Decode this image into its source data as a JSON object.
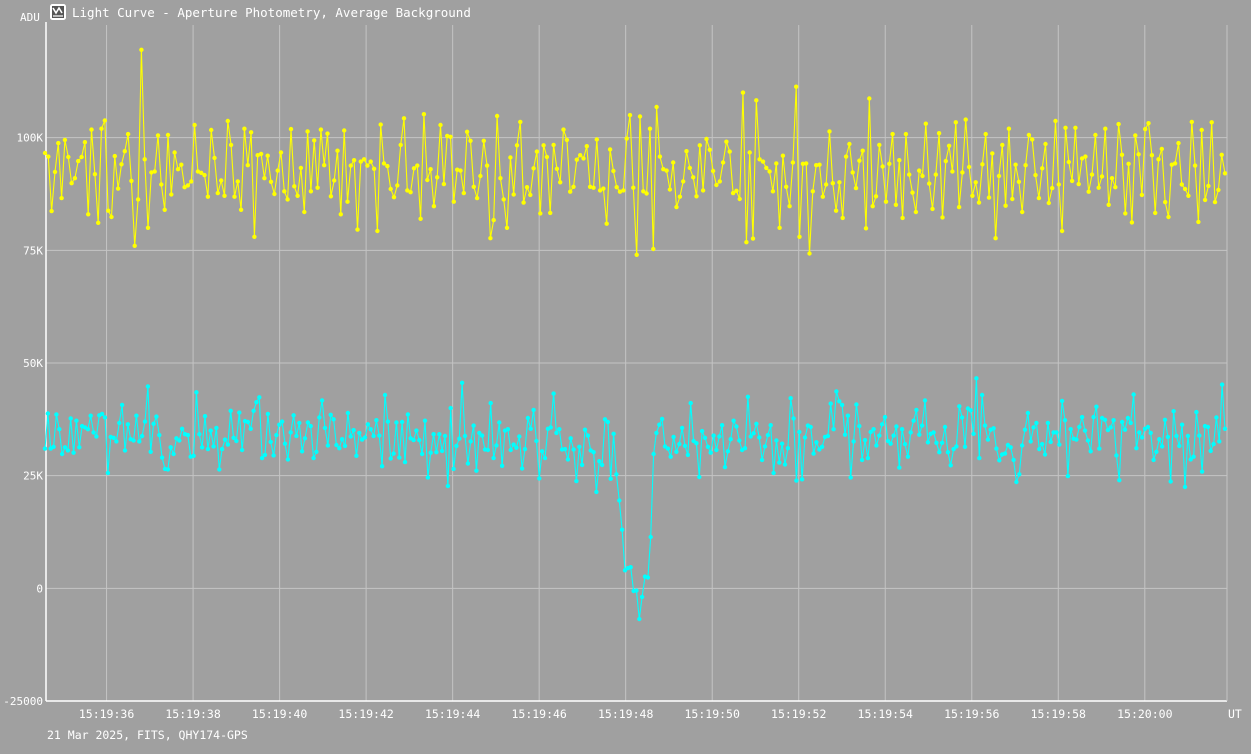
{
  "window": {
    "title": "Light Curve - Aperture Photometry, Average Background",
    "icon": "light-curve-app-icon"
  },
  "footer": {
    "text": "21 Mar 2025, FITS, QHY174-GPS"
  },
  "colors": {
    "background": "#a0a0a0",
    "grid": "#c4c4c4",
    "axis": "#ffffff",
    "series_yellow": "#ffff00",
    "series_cyan": "#00ffff"
  },
  "chart_data": {
    "type": "line",
    "title": "Light Curve - Aperture Photometry, Average Background",
    "ylabel": "ADU",
    "xlabel": "UT",
    "ylim": [
      -25000,
      125000
    ],
    "y_ticks": [
      {
        "value": 100000,
        "label": "100K"
      },
      {
        "value": 75000,
        "label": "75K"
      },
      {
        "value": 50000,
        "label": "50K"
      },
      {
        "value": 25000,
        "label": "25K"
      },
      {
        "value": 0,
        "label": "0"
      },
      {
        "value": -25000,
        "label": "-25000"
      }
    ],
    "x_range_seconds": [
      "15:19:34.6",
      "15:20:01.9"
    ],
    "x_ticks": [
      "15:19:36",
      "15:19:38",
      "15:19:40",
      "15:19:42",
      "15:19:44",
      "15:19:46",
      "15:19:48",
      "15:19:50",
      "15:19:52",
      "15:19:54",
      "15:19:56",
      "15:19:58",
      "15:20:00"
    ],
    "grid": true,
    "markers": true,
    "series": [
      {
        "color": "#ffff00",
        "values": [
          96600,
          95800,
          83700,
          92400,
          98800,
          86600,
          99500,
          95700,
          89900,
          91000,
          94800,
          95700,
          99000,
          83000,
          101800,
          91900,
          81100,
          102000,
          103800,
          83800,
          82400,
          95900,
          88700,
          94100,
          97000,
          100800,
          90400,
          76000,
          86300,
          119500,
          95200,
          80000,
          92300,
          92500,
          100500,
          89600,
          84000,
          100600,
          87400,
          96700,
          93000,
          94000,
          89000,
          89400,
          90300,
          102800,
          92500,
          92200,
          91700,
          86900,
          101700,
          95500,
          87700,
          90500,
          87100,
          103700,
          98400,
          86900,
          90300,
          84000,
          102000,
          93900,
          101200,
          78000,
          96100,
          96400,
          91000,
          96000,
          90200,
          87500,
          92700,
          96700,
          88100,
          86300,
          101900,
          89200,
          87100,
          93300,
          83500,
          101400,
          88100,
          99400,
          88900,
          101800,
          93900,
          100900,
          87000,
          90500,
          97100,
          83000,
          101600,
          85800,
          93800,
          95000,
          79600,
          94700,
          95200,
          93800,
          94700,
          93100,
          79300,
          102900,
          94300,
          93700,
          88600,
          86800,
          89400,
          98400,
          104300,
          88300,
          87900,
          93200,
          93800,
          82000,
          105200,
          90600,
          93000,
          84800,
          91200,
          102800,
          89700,
          100400,
          100200,
          85800,
          92900,
          92700,
          87700,
          101300,
          99300,
          89100,
          86600,
          91500,
          99300,
          93800,
          77700,
          81700,
          104800,
          91000,
          86300,
          80000,
          95600,
          87400,
          98300,
          103500,
          85600,
          89000,
          87300,
          93200,
          96900,
          83200,
          98300,
          95700,
          83300,
          98400,
          93100,
          90100,
          101800,
          99500,
          88000,
          89100,
          95100,
          96100,
          95400,
          98100,
          89100,
          88900,
          99600,
          88300,
          88700,
          80900,
          97400,
          92600,
          89000,
          88000,
          88300,
          99800,
          105000,
          88900,
          74000,
          104700,
          88100,
          87600,
          102000,
          75300,
          106800,
          95800,
          93000,
          92700,
          88500,
          94500,
          84600,
          86900,
          90300,
          97000,
          93300,
          91200,
          87000,
          98300,
          88300,
          99700,
          97300,
          92600,
          89500,
          90300,
          94500,
          99100,
          96900,
          87700,
          88200,
          86400,
          110000,
          76800,
          96700,
          77600,
          108300,
          95200,
          94700,
          93300,
          92500,
          88100,
          94300,
          80000,
          96000,
          89100,
          84800,
          94500,
          111300,
          78000,
          94200,
          94300,
          74300,
          88100,
          93900,
          94000,
          86900,
          89600,
          101400,
          89900,
          83800,
          90100,
          82200,
          95800,
          98600,
          92300,
          88800,
          94900,
          97100,
          79900,
          108700,
          84800,
          87000,
          98400,
          93600,
          85800,
          94200,
          100800,
          85100,
          95000,
          82200,
          100800,
          91800,
          87800,
          83500,
          92700,
          91500,
          103100,
          89800,
          84200,
          91800,
          101000,
          82300,
          94800,
          98200,
          92500,
          103400,
          84600,
          92300,
          104000,
          93500,
          87100,
          90100,
          85600,
          94100,
          100800,
          86700,
          96500,
          77700,
          91500,
          98400,
          84900,
          102000,
          86400,
          94000,
          90200,
          83500,
          93900,
          100600,
          99600,
          91700,
          86600,
          93200,
          98600,
          85500,
          88800,
          103700,
          89600,
          79300,
          102200,
          94600,
          90400,
          102200,
          89700,
          95400,
          95800,
          88000,
          91800,
          100600,
          88900,
          91400,
          102000,
          85100,
          91000,
          89000,
          103000,
          96200,
          83200,
          94200,
          81200,
          100500,
          96300,
          87300,
          101900,
          103200,
          96100,
          83300,
          95200,
          97500,
          85700,
          82400,
          94000,
          94300,
          98800,
          89600,
          88600,
          87100,
          103500,
          93800,
          81300,
          101700,
          86200,
          89300,
          103400,
          85700,
          88400,
          96200,
          92100
        ],
        "note_ignore": ""
      },
      {
        "color": "#00ffff",
        "values": [
          31000,
          38800,
          31000,
          31400,
          38600,
          35300,
          29800,
          31300,
          30600,
          37700,
          30100,
          37200,
          31300,
          36000,
          35700,
          35300,
          38300,
          34600,
          33700,
          38400,
          38700,
          37900,
          25600,
          33600,
          33400,
          32600,
          36700,
          40700,
          30600,
          36400,
          33100,
          32800,
          38300,
          32600,
          33800,
          37000,
          44800,
          30300,
          36500,
          38100,
          34000,
          29000,
          26500,
          26400,
          31300,
          29800,
          33300,
          32800,
          35400,
          34200,
          34000,
          29200,
          29400,
          43500,
          34200,
          31300,
          38200,
          30900,
          35000,
          31500,
          35600,
          26400,
          30900,
          33000,
          31900,
          39400,
          33400,
          32700,
          39000,
          30700,
          37100,
          36900,
          35400,
          39400,
          41300,
          42400,
          28900,
          29600,
          38700,
          32500,
          29500,
          34000,
          36300,
          37000,
          32100,
          28600,
          34600,
          38400,
          33800,
          36700,
          30400,
          33300,
          36800,
          36000,
          28900,
          30300,
          37900,
          41700,
          35600,
          31700,
          38500,
          37500,
          31800,
          31100,
          33100,
          31600,
          38900,
          33700,
          35100,
          29400,
          34500,
          33000,
          33500,
          36400,
          35300,
          33800,
          37300,
          33900,
          27100,
          42900,
          37000,
          28800,
          29900,
          36800,
          29000,
          36900,
          28000,
          38600,
          33300,
          32900,
          35000,
          32900,
          29800,
          37200,
          24600,
          30100,
          34200,
          30200,
          34200,
          30500,
          33800,
          22700,
          40000,
          26500,
          31600,
          33200,
          45600,
          33800,
          27700,
          32600,
          36100,
          26100,
          34500,
          33900,
          30800,
          30700,
          41100,
          28900,
          31700,
          36800,
          27200,
          35000,
          35300,
          30700,
          31900,
          31200,
          33700,
          26600,
          30900,
          37800,
          35400,
          39600,
          32700,
          24400,
          30400,
          28900,
          35400,
          35700,
          43200,
          34500,
          35300,
          30800,
          30900,
          28600,
          33300,
          30800,
          23800,
          31400,
          27400,
          35200,
          33900,
          30600,
          30200,
          21400,
          28200,
          27400,
          37500,
          36900,
          24300,
          34300,
          25300,
          19500,
          13000,
          4000,
          4500,
          4700,
          -600,
          -500,
          -6800,
          -1900,
          2600,
          2400,
          11400,
          29800,
          34500,
          36300,
          37600,
          31500,
          31000,
          29200,
          33600,
          30300,
          32000,
          35600,
          31600,
          29600,
          41100,
          32700,
          32200,
          24700,
          34900,
          33400,
          31400,
          30100,
          33900,
          30700,
          33700,
          36200,
          26900,
          30400,
          33100,
          37200,
          35900,
          32800,
          30700,
          31100,
          42500,
          33700,
          34400,
          36500,
          33500,
          28500,
          31500,
          34000,
          36200,
          25600,
          32800,
          27900,
          32100,
          27500,
          31100,
          42200,
          37700,
          23900,
          34700,
          24200,
          33500,
          36100,
          35800,
          29900,
          32400,
          30800,
          31400,
          33600,
          33800,
          41000,
          35300,
          43700,
          41500,
          40700,
          34100,
          38300,
          24600,
          32600,
          40800,
          36000,
          28500,
          32900,
          28900,
          34700,
          35300,
          31700,
          33900,
          36400,
          38000,
          32700,
          32100,
          33900,
          35900,
          26800,
          35300,
          32000,
          29200,
          34600,
          37200,
          39600,
          34100,
          36100,
          41700,
          32400,
          34300,
          34600,
          32300,
          30200,
          32300,
          35800,
          30200,
          27300,
          30900,
          31500,
          40400,
          37900,
          31400,
          39900,
          39500,
          34300,
          46600,
          28900,
          42900,
          36100,
          33000,
          35200,
          35500,
          31000,
          28400,
          29700,
          29900,
          31800,
          31300,
          28500,
          23600,
          25300,
          31700,
          35200,
          38900,
          32600,
          35700,
          36700,
          30900,
          32000,
          29700,
          36700,
          32500,
          34600,
          34600,
          31900,
          41600,
          37300,
          24900,
          35300,
          33200,
          33000,
          35800,
          38000,
          35000,
          32800,
          30400,
          38000,
          40300,
          31000,
          37800,
          37400,
          35100,
          35700,
          37300,
          29500,
          24000,
          36900,
          35200,
          37800,
          36700,
          43000,
          31100,
          34600,
          33500,
          35400,
          35800,
          34500,
          28500,
          30300,
          33100,
          31500,
          37400,
          33600,
          23700,
          39300,
          33800,
          31600,
          36300,
          22500,
          33800,
          28600,
          29200,
          39100,
          33900,
          25900,
          36000,
          35800,
          30500,
          32000,
          37900,
          32600,
          45200,
          35400
        ]
      }
    ]
  }
}
